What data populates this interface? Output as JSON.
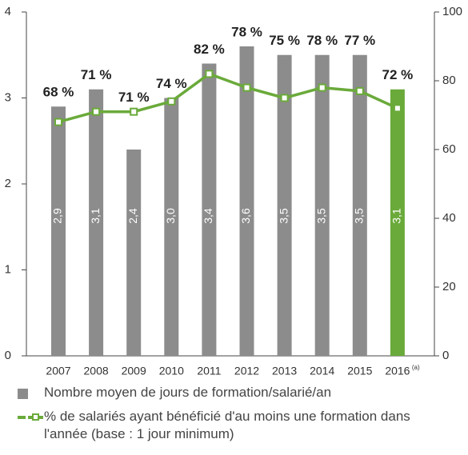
{
  "chart_data": {
    "type": "bar_line",
    "categories": [
      "2007",
      "2008",
      "2009",
      "2010",
      "2011",
      "2012",
      "2013",
      "2014",
      "2015",
      "2016"
    ],
    "category_note": {
      "index": 9,
      "text": "(a)"
    },
    "series": [
      {
        "name": "Nombre moyen de jours de formation/salarié/an",
        "type": "bar",
        "axis": "y",
        "color": "#8c8c8c",
        "colors": [
          "#8c8c8c",
          "#8c8c8c",
          "#8c8c8c",
          "#8c8c8c",
          "#8c8c8c",
          "#8c8c8c",
          "#8c8c8c",
          "#8c8c8c",
          "#8c8c8c",
          "#6aaa3a"
        ],
        "values": [
          2.9,
          3.1,
          2.4,
          3.0,
          3.4,
          3.6,
          3.5,
          3.5,
          3.5,
          3.1
        ],
        "value_labels": [
          "2,9",
          "3,1",
          "2,4",
          "3,0",
          "3,4",
          "3,6",
          "3,5",
          "3,5",
          "3,5",
          "3,1"
        ]
      },
      {
        "name": "% de salariés ayant bénéficié d'au moins une formation dans l'année (base : 1 jour minimum)",
        "type": "line",
        "axis": "y2",
        "color": "#6aaa3a",
        "values": [
          68,
          71,
          71,
          74,
          82,
          78,
          75,
          78,
          77,
          72
        ],
        "value_labels": [
          "68 %",
          "71 %",
          "71 %",
          "74 %",
          "82 %",
          "78 %",
          "75 %",
          "78 %",
          "77 %",
          "72 %"
        ]
      }
    ],
    "ylim": [
      0,
      4
    ],
    "yticks": [
      0,
      1,
      2,
      3,
      4
    ],
    "y2lim": [
      0,
      100
    ],
    "y2ticks": [
      0,
      20,
      40,
      60,
      80,
      100
    ],
    "grid": false
  }
}
